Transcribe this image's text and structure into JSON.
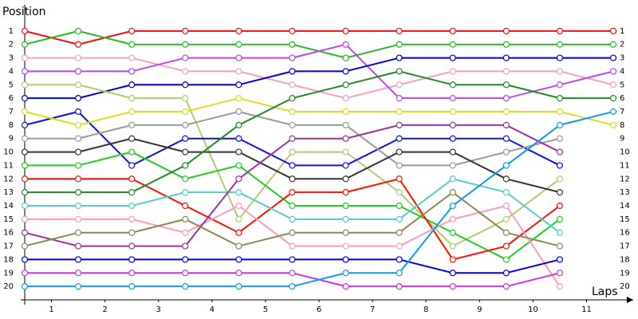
{
  "chart_data": {
    "type": "line",
    "y_label": "Position",
    "x_label": "Laps",
    "x": [
      0,
      1,
      2,
      3,
      4,
      5,
      6,
      7,
      8,
      9,
      10,
      11
    ],
    "xlim": [
      0,
      11
    ],
    "xticks": [
      {
        "value": 0.5,
        "label": "1"
      },
      {
        "value": 1.5,
        "label": "2"
      },
      {
        "value": 2.5,
        "label": "3"
      },
      {
        "value": 3.5,
        "label": "4"
      },
      {
        "value": 4.5,
        "label": "5"
      },
      {
        "value": 5.5,
        "label": "6"
      },
      {
        "value": 6.5,
        "label": "7"
      },
      {
        "value": 7.5,
        "label": "8"
      },
      {
        "value": 8.5,
        "label": "9"
      },
      {
        "value": 9.5,
        "label": "10"
      },
      {
        "value": 10.5,
        "label": "11"
      }
    ],
    "ylim": [
      21,
      0
    ],
    "yticks": [
      1,
      2,
      3,
      4,
      5,
      6,
      7,
      8,
      9,
      10,
      11,
      12,
      13,
      14,
      15,
      16,
      17,
      18,
      19,
      20
    ],
    "series": [
      {
        "color": "#ee1111",
        "values": [
          1,
          2,
          1,
          1,
          1,
          1,
          1,
          1,
          1,
          1,
          1,
          1
        ]
      },
      {
        "color": "#22bb22",
        "values": [
          2,
          1,
          2,
          2,
          2,
          2,
          3,
          2,
          2,
          2,
          2,
          2
        ]
      },
      {
        "color": "#f4a0c0",
        "values": [
          3,
          3,
          3,
          4,
          4,
          5,
          6,
          5,
          4,
          4,
          4,
          5
        ]
      },
      {
        "color": "#bb44ee",
        "values": [
          4,
          4,
          4,
          3,
          3,
          3,
          2,
          6,
          6,
          6,
          5,
          4
        ]
      },
      {
        "color": "#0000cc",
        "values": [
          6,
          6,
          5,
          5,
          5,
          4,
          4,
          3,
          3,
          3,
          3,
          3
        ]
      },
      {
        "color": "#b0cc70",
        "values": [
          5,
          5,
          6,
          6,
          15,
          10,
          10,
          13,
          17,
          15,
          12,
          null
        ]
      },
      {
        "color": "#1111dd",
        "values": [
          8,
          7,
          11,
          9,
          9,
          11,
          11,
          9,
          9,
          9,
          11,
          null
        ]
      },
      {
        "color": "#dddd22",
        "values": [
          7,
          8,
          7,
          7,
          6,
          7,
          7,
          7,
          7,
          7,
          7,
          8
        ]
      },
      {
        "color": "#999999",
        "values": [
          9,
          9,
          8,
          8,
          7,
          8,
          8,
          11,
          11,
          10,
          9,
          null
        ]
      },
      {
        "color": "#333333",
        "values": [
          10,
          10,
          9,
          10,
          10,
          12,
          12,
          10,
          10,
          12,
          13,
          null
        ]
      },
      {
        "color": "#22cc22",
        "values": [
          11,
          11,
          10,
          12,
          11,
          14,
          14,
          14,
          16,
          18,
          15,
          null
        ]
      },
      {
        "color": "#ff1100",
        "values": [
          12,
          12,
          12,
          14,
          16,
          13,
          13,
          12,
          18,
          17,
          14,
          null
        ]
      },
      {
        "color": "#228822",
        "values": [
          13,
          13,
          13,
          11,
          8,
          6,
          5,
          4,
          5,
          5,
          6,
          6
        ]
      },
      {
        "color": "#55cccc",
        "values": [
          14,
          14,
          14,
          13,
          13,
          15,
          15,
          15,
          12,
          13,
          16,
          null
        ]
      },
      {
        "color": "#ff99bb",
        "values": [
          15,
          15,
          15,
          16,
          14,
          17,
          17,
          17,
          15,
          14,
          20,
          null
        ]
      },
      {
        "color": "#993399",
        "values": [
          16,
          17,
          17,
          17,
          12,
          9,
          9,
          8,
          8,
          8,
          10,
          null
        ]
      },
      {
        "color": "#888855",
        "values": [
          17,
          16,
          16,
          15,
          17,
          16,
          16,
          16,
          13,
          16,
          17,
          null
        ]
      },
      {
        "color": "#0000dd",
        "values": [
          18,
          18,
          18,
          18,
          18,
          18,
          18,
          18,
          19,
          19,
          18,
          null
        ]
      },
      {
        "color": "#cc33ee",
        "values": [
          19,
          19,
          19,
          19,
          19,
          19,
          20,
          20,
          20,
          20,
          19,
          null
        ]
      },
      {
        "color": "#1199ee",
        "values": [
          20,
          20,
          20,
          20,
          20,
          20,
          19,
          19,
          14,
          11,
          8,
          7
        ]
      }
    ]
  }
}
